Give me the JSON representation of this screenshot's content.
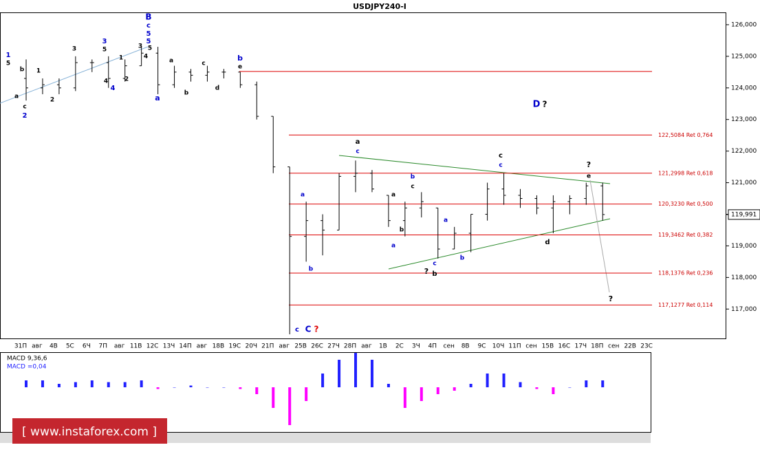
{
  "chart_data": {
    "type": "ohlc",
    "title": "USDJPY240-I",
    "categories": [
      "31П",
      "авг",
      "4В",
      "5С",
      "6Ч",
      "7П",
      "авг",
      "11В",
      "12С",
      "13Ч",
      "14П",
      "авг",
      "18В",
      "19С",
      "20Ч",
      "21П",
      "авг",
      "25В",
      "26С",
      "27Ч",
      "28П",
      "авг",
      "1В",
      "2С",
      "3Ч",
      "4П",
      "сен",
      "8В",
      "9С",
      "10Ч",
      "11П",
      "сен",
      "15В",
      "16С",
      "17Ч",
      "18П",
      "сен",
      "22В",
      "23С"
    ],
    "open": [
      124.3,
      124.0,
      124.1,
      124.0,
      124.8,
      124.8,
      124.3,
      124.7,
      125.1,
      124.1,
      124.5,
      124.4,
      124.5,
      124.5,
      124.1,
      123.1,
      121.5,
      119.3,
      119.8,
      119.5,
      121.2,
      121.3,
      120.6,
      119.8,
      120.2,
      120.2,
      118.9,
      119.4,
      120.0,
      120.8,
      120.6,
      120.5,
      120.2,
      120.4,
      120.5,
      120.9,
      null,
      null,
      null
    ],
    "high": [
      124.9,
      124.3,
      124.3,
      125.0,
      124.9,
      125.0,
      124.9,
      125.3,
      125.3,
      124.7,
      124.6,
      124.7,
      124.6,
      124.5,
      124.2,
      123.1,
      121.5,
      120.4,
      120.0,
      121.3,
      121.7,
      121.4,
      120.6,
      120.4,
      120.7,
      120.2,
      119.6,
      120.0,
      121.0,
      121.3,
      120.8,
      120.6,
      120.6,
      120.6,
      121.0,
      121.0,
      null,
      null,
      null
    ],
    "low": [
      123.6,
      123.8,
      123.8,
      123.9,
      124.5,
      124.0,
      124.2,
      124.7,
      123.8,
      124.0,
      124.2,
      124.2,
      124.3,
      124.0,
      123.0,
      121.3,
      116.2,
      118.5,
      118.7,
      119.5,
      120.7,
      120.7,
      119.6,
      119.3,
      119.9,
      118.6,
      118.9,
      118.8,
      119.8,
      120.3,
      120.2,
      120.0,
      119.4,
      120.0,
      120.3,
      119.8,
      null,
      null,
      null
    ],
    "close": [
      124.0,
      124.1,
      124.0,
      124.8,
      124.8,
      124.3,
      124.7,
      125.1,
      124.1,
      124.5,
      124.4,
      124.5,
      124.5,
      124.1,
      123.1,
      121.5,
      119.3,
      119.8,
      119.5,
      121.2,
      121.3,
      120.8,
      119.8,
      120.2,
      120.4,
      118.9,
      119.4,
      120.0,
      120.8,
      120.6,
      120.5,
      120.2,
      120.4,
      120.5,
      120.9,
      119.991,
      null,
      null,
      null
    ],
    "ylim": [
      116.07,
      126.39
    ],
    "yticks": [
      {
        "value": 126,
        "label": "126,000"
      },
      {
        "value": 125,
        "label": "125,000"
      },
      {
        "value": 124,
        "label": "124,000"
      },
      {
        "value": 123,
        "label": "123,000"
      },
      {
        "value": 122,
        "label": "122,000"
      },
      {
        "value": 121,
        "label": "121,000"
      },
      {
        "value": 120,
        "label": "120,000"
      },
      {
        "value": 119,
        "label": "119,000"
      },
      {
        "value": 118,
        "label": "118,000"
      },
      {
        "value": 117,
        "label": "117,000"
      }
    ],
    "resistance_line": 124.52,
    "levels": [
      {
        "value": 122.5084,
        "label": "122,5084 Ret 0,764"
      },
      {
        "value": 121.2998,
        "label": "121,2998 Ret 0,618"
      },
      {
        "value": 120.323,
        "label": "120,3230 Ret 0,500"
      },
      {
        "value": 119.3462,
        "label": "119,3462 Ret 0,382"
      },
      {
        "value": 118.1376,
        "label": "118,1376 Ret 0,236"
      },
      {
        "value": 117.1277,
        "label": "117,1277 Ret 0,114"
      }
    ],
    "last_price": {
      "value": 119.991,
      "label": "119,991"
    },
    "annotations": [
      "1",
      "5",
      "b",
      "a",
      "c",
      "2",
      "1",
      "2",
      "3",
      "3",
      "5",
      "4",
      "4",
      "1",
      "2",
      "3",
      "4",
      "5",
      "B",
      "c",
      "5",
      "5",
      "a",
      "a",
      "b",
      "c",
      "d",
      "b",
      "e",
      "a",
      "c",
      "a",
      "b",
      "c",
      "C",
      "?",
      "b",
      "c",
      "a",
      "b",
      "a",
      "a",
      "c",
      "?",
      "b",
      "b",
      "c",
      "c",
      "d",
      "?",
      "e",
      "D",
      "?",
      "?"
    ],
    "macd": {
      "title": "MACD 9,36,6",
      "value_label": "MACD =0,04",
      "values": [
        0.04,
        0.04,
        0.02,
        0.03,
        0.04,
        0.03,
        0.03,
        0.04,
        -0.01,
        0.0,
        0.01,
        0.0,
        0.0,
        -0.01,
        -0.04,
        -0.12,
        -0.22,
        -0.08,
        0.08,
        0.16,
        0.2,
        0.16,
        0.02,
        -0.12,
        -0.08,
        -0.04,
        -0.02,
        0.02,
        0.08,
        0.08,
        0.03,
        -0.01,
        -0.04,
        0.0,
        0.04,
        0.04,
        null,
        null,
        null
      ]
    },
    "watermark": "[ www.instaforex.com ]"
  }
}
